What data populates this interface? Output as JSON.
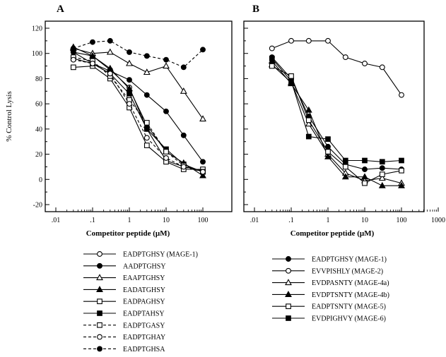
{
  "chart_data": [
    {
      "panel": "A",
      "type": "line",
      "xlabel": "Competitor peptide (µM)",
      "ylabel": "% Control Lysis",
      "x_scale": "log",
      "xlim": [
        0.01,
        100
      ],
      "ylim": [
        -20,
        120
      ],
      "x_ticks": [
        ".01",
        ".1",
        "1",
        "10",
        "100"
      ],
      "y_ticks": [
        "-20",
        "0",
        "20",
        "40",
        "60",
        "80",
        "100",
        "120"
      ],
      "x": [
        0.03,
        0.1,
        0.3,
        1,
        3,
        10,
        30,
        100
      ],
      "series": [
        {
          "name": "EADPTGHSY (MAGE-1)",
          "marker": "circle-open",
          "dashed": false,
          "values": [
            101,
            98,
            87,
            73,
            40,
            15,
            10,
            7
          ]
        },
        {
          "name": "AADPTGHSY",
          "marker": "circle-filled",
          "dashed": false,
          "values": [
            101,
            92,
            86,
            79,
            67,
            54,
            35,
            14
          ]
        },
        {
          "name": "EAAPTGHSY",
          "marker": "triangle-open",
          "dashed": false,
          "values": [
            104,
            100,
            101,
            92,
            85,
            90,
            70,
            48
          ]
        },
        {
          "name": "EADATGHSY",
          "marker": "triangle-filled",
          "dashed": false,
          "values": [
            105,
            98,
            88,
            72,
            43,
            22,
            13,
            3
          ]
        },
        {
          "name": "EADPAGHSY",
          "marker": "square-open",
          "dashed": false,
          "values": [
            89,
            90,
            80,
            57,
            27,
            14,
            8,
            8
          ]
        },
        {
          "name": "EADPTAHSY",
          "marker": "square-filled",
          "dashed": false,
          "values": [
            96,
            92,
            84,
            68,
            40,
            24,
            12,
            6
          ]
        },
        {
          "name": "EADPTGASY",
          "marker": "square-open",
          "dashed": true,
          "values": [
            97,
            94,
            82,
            63,
            45,
            22,
            11,
            6
          ]
        },
        {
          "name": "EADPTGHAY",
          "marker": "circle-open",
          "dashed": true,
          "values": [
            95,
            92,
            84,
            60,
            33,
            17,
            10,
            6
          ]
        },
        {
          "name": "EADPTGHSA",
          "marker": "circle-filled",
          "dashed": true,
          "values": [
            104,
            109,
            110,
            101,
            98,
            95,
            89,
            103
          ]
        }
      ]
    },
    {
      "panel": "B",
      "type": "line",
      "xlabel": "Competitor peptide (µM)",
      "ylabel": "",
      "x_scale": "log",
      "xlim": [
        0.01,
        1000
      ],
      "ylim": [
        -20,
        120
      ],
      "x_ticks": [
        ".01",
        ".1",
        "1",
        "10",
        "100",
        "1000"
      ],
      "x": [
        0.03,
        0.1,
        0.3,
        1,
        3,
        10,
        30,
        100
      ],
      "series": [
        {
          "name": "EADPTGHSY (MAGE-1)",
          "marker": "circle-filled",
          "dashed": false,
          "values": [
            97,
            80,
            50,
            26,
            12,
            8,
            9,
            8
          ]
        },
        {
          "name": "EVVPISHLY (MAGE-2)",
          "marker": "circle-open",
          "dashed": false,
          "values": [
            104,
            110,
            110,
            110,
            97,
            92,
            89,
            67
          ]
        },
        {
          "name": "EVDPASNTY (MAGE-4a)",
          "marker": "triangle-open",
          "dashed": false,
          "values": [
            91,
            77,
            44,
            20,
            5,
            -1,
            1,
            -3
          ]
        },
        {
          "name": "EVDPTSNTY (MAGE-4b)",
          "marker": "triangle-filled",
          "dashed": false,
          "values": [
            94,
            76,
            55,
            18,
            2,
            2,
            -5,
            -5
          ]
        },
        {
          "name": "EADPTSNTY (MAGE-5)",
          "marker": "square-open",
          "dashed": false,
          "values": [
            90,
            82,
            47,
            22,
            10,
            -3,
            4,
            7
          ]
        },
        {
          "name": "EVDPIGHVY (MAGE-6)",
          "marker": "square-filled",
          "dashed": false,
          "values": [
            96,
            78,
            34,
            32,
            15,
            15,
            14,
            15
          ]
        }
      ]
    }
  ]
}
